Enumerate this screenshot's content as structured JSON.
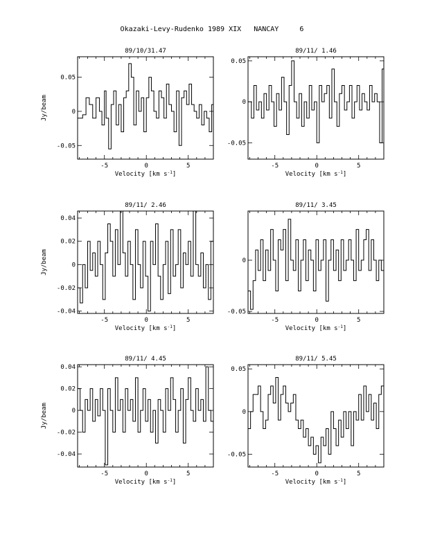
{
  "page": {
    "title": "Okazaki-Levy-Rudenko 1989 XIX   NANCAY     6"
  },
  "chart_data": [
    {
      "type": "line",
      "title": "89/10/31.47",
      "xlabel": "Velocity [km s$^{-1}$]",
      "ylabel": "Jy/beam",
      "xlim": [
        -8.2,
        8
      ],
      "ylim": [
        -0.07,
        0.08
      ],
      "xticks": [
        -5,
        0,
        5
      ],
      "yticks": [
        -0.05,
        0,
        0.05
      ],
      "ytick_labels": [
        "-0.05",
        "0",
        "0.05"
      ],
      "series": [
        {
          "x": [
            -8.2,
            -7.6,
            -7.2,
            -6.8,
            -6.4,
            -6.0,
            -5.6,
            -5.3,
            -5.0,
            -4.8,
            -4.5,
            -4.2,
            -3.9,
            -3.6,
            -3.3,
            -3.0,
            -2.7,
            -2.4,
            -2.1,
            -1.8,
            -1.5,
            -1.2,
            -0.9,
            -0.6,
            -0.3,
            0.0,
            0.3,
            0.6,
            0.9,
            1.2,
            1.5,
            1.8,
            2.1,
            2.4,
            2.7,
            3.0,
            3.3,
            3.6,
            3.9,
            4.2,
            4.5,
            4.8,
            5.1,
            5.4,
            5.7,
            6.0,
            6.3,
            6.6,
            6.9,
            7.2,
            7.5,
            7.8
          ],
          "y": [
            -0.01,
            -0.005,
            0.02,
            0.01,
            -0.01,
            0.02,
            0.0,
            -0.02,
            0.03,
            -0.01,
            -0.055,
            0.01,
            0.03,
            -0.02,
            0.01,
            -0.03,
            0.02,
            0.03,
            0.07,
            0.05,
            -0.02,
            0.03,
            0.0,
            0.02,
            -0.03,
            0.02,
            0.05,
            0.03,
            0.0,
            -0.01,
            0.03,
            0.02,
            -0.01,
            0.04,
            0.01,
            0.0,
            -0.03,
            0.03,
            -0.05,
            0.02,
            0.03,
            0.01,
            0.04,
            0.01,
            0.0,
            -0.01,
            0.01,
            -0.02,
            0.0,
            -0.01,
            -0.03,
            0.01
          ]
        }
      ]
    },
    {
      "type": "line",
      "title": "89/11/ 1.46",
      "xlabel": "Velocity [km s$^{-1}$]",
      "ylabel": "",
      "xlim": [
        -8.2,
        8
      ],
      "ylim": [
        -0.07,
        0.055
      ],
      "xticks": [
        -5,
        0,
        5
      ],
      "yticks": [
        -0.05,
        0,
        0.05
      ],
      "ytick_labels": [
        "-0.05",
        "0",
        "0.05"
      ],
      "series": [
        {
          "x": [
            -8.2,
            -7.8,
            -7.5,
            -7.2,
            -6.9,
            -6.6,
            -6.3,
            -6.0,
            -5.7,
            -5.4,
            -5.1,
            -4.8,
            -4.5,
            -4.2,
            -3.9,
            -3.6,
            -3.3,
            -3.0,
            -2.7,
            -2.4,
            -2.1,
            -1.8,
            -1.5,
            -1.2,
            -0.9,
            -0.6,
            -0.3,
            0.0,
            0.3,
            0.6,
            0.9,
            1.2,
            1.5,
            1.8,
            2.1,
            2.4,
            2.7,
            3.0,
            3.3,
            3.6,
            3.9,
            4.2,
            4.5,
            4.8,
            5.1,
            5.4,
            5.7,
            6.0,
            6.3,
            6.6,
            6.9,
            7.2,
            7.5,
            7.8
          ],
          "y": [
            0.0,
            -0.02,
            0.02,
            -0.01,
            0.0,
            -0.02,
            0.01,
            -0.01,
            0.02,
            0.0,
            -0.03,
            0.01,
            -0.01,
            0.03,
            0.0,
            -0.04,
            0.02,
            0.05,
            0.0,
            -0.02,
            0.01,
            -0.03,
            0.0,
            -0.02,
            0.02,
            -0.01,
            0.0,
            -0.05,
            0.02,
            0.0,
            0.01,
            0.02,
            -0.02,
            0.04,
            0.0,
            -0.03,
            0.01,
            0.02,
            -0.01,
            0.0,
            0.02,
            -0.02,
            0.0,
            0.02,
            -0.01,
            0.01,
            0.0,
            -0.01,
            0.02,
            0.0,
            0.01,
            0.0,
            -0.05,
            0.04
          ]
        }
      ]
    },
    {
      "type": "line",
      "title": "89/11/ 2.46",
      "xlabel": "Velocity [km s$^{-1}$]",
      "ylabel": "Jy/beam",
      "xlim": [
        -8.2,
        8
      ],
      "ylim": [
        -0.042,
        0.046
      ],
      "xticks": [
        -5,
        0,
        5
      ],
      "yticks": [
        -0.04,
        -0.02,
        0,
        0.02,
        0.04
      ],
      "ytick_labels": [
        "-0.04",
        "-0.02",
        "0",
        "0.02",
        "0.04"
      ],
      "series": [
        {
          "x": [
            -8.2,
            -7.9,
            -7.6,
            -7.3,
            -7.0,
            -6.7,
            -6.4,
            -6.1,
            -5.8,
            -5.5,
            -5.2,
            -4.9,
            -4.6,
            -4.3,
            -4.0,
            -3.7,
            -3.4,
            -3.1,
            -2.8,
            -2.5,
            -2.2,
            -1.9,
            -1.6,
            -1.3,
            -1.0,
            -0.7,
            -0.4,
            -0.1,
            0.2,
            0.5,
            0.8,
            1.1,
            1.4,
            1.7,
            2.0,
            2.3,
            2.6,
            2.9,
            3.2,
            3.5,
            3.8,
            4.1,
            4.4,
            4.7,
            5.0,
            5.3,
            5.6,
            5.9,
            6.2,
            6.5,
            6.8,
            7.1,
            7.4,
            7.7
          ],
          "y": [
            -0.02,
            -0.033,
            0.0,
            -0.02,
            0.02,
            -0.005,
            0.01,
            -0.01,
            0.02,
            0.0,
            -0.03,
            0.01,
            0.035,
            0.02,
            -0.01,
            0.03,
            0.0,
            0.05,
            0.01,
            -0.01,
            0.02,
            0.0,
            -0.03,
            0.03,
            0.0,
            -0.02,
            0.02,
            -0.01,
            -0.04,
            0.02,
            0.0,
            0.035,
            -0.01,
            -0.03,
            0.0,
            0.02,
            -0.025,
            0.03,
            -0.01,
            0.0,
            0.03,
            -0.02,
            0.01,
            0.0,
            0.02,
            -0.01,
            0.05,
            0.0,
            -0.01,
            0.01,
            -0.02,
            0.0,
            -0.03,
            0.02
          ]
        }
      ]
    },
    {
      "type": "line",
      "title": "89/11/ 3.45",
      "xlabel": "Velocity [km s$^{-1}$]",
      "ylabel": "",
      "xlim": [
        -8.2,
        8
      ],
      "ylim": [
        -0.052,
        0.048
      ],
      "xticks": [
        -5,
        0,
        5
      ],
      "yticks": [
        -0.05,
        0
      ],
      "ytick_labels": [
        "-0.05",
        "0"
      ],
      "series": [
        {
          "x": [
            -8.2,
            -7.9,
            -7.6,
            -7.3,
            -7.0,
            -6.7,
            -6.4,
            -6.1,
            -5.8,
            -5.5,
            -5.2,
            -4.9,
            -4.6,
            -4.3,
            -4.0,
            -3.7,
            -3.4,
            -3.1,
            -2.8,
            -2.5,
            -2.2,
            -1.9,
            -1.6,
            -1.3,
            -1.0,
            -0.7,
            -0.4,
            -0.1,
            0.2,
            0.5,
            0.8,
            1.1,
            1.4,
            1.7,
            2.0,
            2.3,
            2.6,
            2.9,
            3.2,
            3.5,
            3.8,
            4.1,
            4.4,
            4.7,
            5.0,
            5.3,
            5.6,
            5.9,
            6.2,
            6.5,
            6.8,
            7.1,
            7.4,
            7.7
          ],
          "y": [
            -0.03,
            -0.048,
            -0.02,
            0.01,
            -0.01,
            0.02,
            -0.02,
            0.01,
            -0.01,
            0.03,
            0.0,
            -0.03,
            0.02,
            0.01,
            0.03,
            -0.02,
            0.04,
            0.0,
            -0.01,
            0.02,
            -0.03,
            0.0,
            0.02,
            -0.02,
            0.01,
            0.0,
            -0.03,
            0.02,
            -0.01,
            0.0,
            0.02,
            -0.04,
            0.0,
            0.02,
            -0.01,
            0.01,
            -0.02,
            0.02,
            -0.01,
            0.0,
            0.02,
            0.0,
            -0.02,
            0.03,
            -0.01,
            0.0,
            0.02,
            0.03,
            -0.01,
            0.02,
            0.0,
            -0.02,
            0.0,
            -0.01
          ]
        }
      ]
    },
    {
      "type": "line",
      "title": "89/11/ 4.45",
      "xlabel": "Velocity [km s$^{-1}$]",
      "ylabel": "Jy/beam",
      "xlim": [
        -8.2,
        8
      ],
      "ylim": [
        -0.052,
        0.042
      ],
      "xticks": [
        -5,
        0,
        5
      ],
      "yticks": [
        -0.04,
        -0.02,
        0,
        0.02,
        0.04
      ],
      "ytick_labels": [
        "-0.04",
        "-0.02",
        "0",
        "0.02",
        "0.04"
      ],
      "series": [
        {
          "x": [
            -8.2,
            -7.9,
            -7.6,
            -7.3,
            -7.0,
            -6.7,
            -6.4,
            -6.1,
            -5.8,
            -5.5,
            -5.2,
            -4.9,
            -4.6,
            -4.3,
            -4.0,
            -3.7,
            -3.4,
            -3.1,
            -2.8,
            -2.5,
            -2.2,
            -1.9,
            -1.6,
            -1.3,
            -1.0,
            -0.7,
            -0.4,
            -0.1,
            0.2,
            0.5,
            0.8,
            1.1,
            1.4,
            1.7,
            2.0,
            2.3,
            2.6,
            2.9,
            3.2,
            3.5,
            3.8,
            4.1,
            4.4,
            4.7,
            5.0,
            5.3,
            5.6,
            5.9,
            6.2,
            6.5,
            6.8,
            7.1,
            7.4,
            7.7
          ],
          "y": [
            0.02,
            0.0,
            -0.02,
            0.01,
            0.0,
            0.02,
            -0.01,
            0.01,
            -0.005,
            0.02,
            0.0,
            -0.05,
            0.02,
            0.0,
            -0.02,
            0.03,
            0.0,
            0.01,
            -0.02,
            0.02,
            0.0,
            0.01,
            -0.01,
            0.03,
            -0.02,
            0.0,
            0.02,
            -0.01,
            0.01,
            -0.02,
            0.0,
            -0.03,
            0.01,
            0.0,
            -0.02,
            0.02,
            0.0,
            0.03,
            0.01,
            -0.02,
            0.0,
            0.02,
            -0.03,
            0.01,
            0.03,
            0.0,
            -0.01,
            0.02,
            0.0,
            0.01,
            -0.01,
            0.04,
            0.0,
            -0.01
          ]
        }
      ]
    },
    {
      "type": "line",
      "title": "89/11/ 5.45",
      "xlabel": "Velocity [km s$^{-1}$]",
      "ylabel": "",
      "xlim": [
        -8.2,
        8
      ],
      "ylim": [
        -0.065,
        0.055
      ],
      "xticks": [
        -5,
        0,
        5
      ],
      "yticks": [
        -0.05,
        0,
        0.05
      ],
      "ytick_labels": [
        "-0.05",
        "0",
        "0.05"
      ],
      "series": [
        {
          "x": [
            -8.2,
            -7.9,
            -7.6,
            -7.3,
            -7.0,
            -6.7,
            -6.4,
            -6.1,
            -5.8,
            -5.5,
            -5.2,
            -4.9,
            -4.6,
            -4.3,
            -4.0,
            -3.7,
            -3.4,
            -3.1,
            -2.8,
            -2.5,
            -2.2,
            -1.9,
            -1.6,
            -1.3,
            -1.0,
            -0.7,
            -0.4,
            -0.1,
            0.2,
            0.5,
            0.8,
            1.1,
            1.4,
            1.7,
            2.0,
            2.3,
            2.6,
            2.9,
            3.2,
            3.5,
            3.8,
            4.1,
            4.4,
            4.7,
            5.0,
            5.3,
            5.6,
            5.9,
            6.2,
            6.5,
            6.8,
            7.1,
            7.4,
            7.7
          ],
          "y": [
            -0.02,
            0.0,
            0.02,
            0.02,
            0.03,
            0.0,
            -0.02,
            -0.01,
            0.02,
            0.03,
            0.01,
            0.04,
            -0.01,
            0.02,
            0.03,
            0.01,
            0.0,
            0.01,
            0.02,
            -0.01,
            -0.02,
            -0.01,
            -0.03,
            -0.02,
            -0.04,
            -0.03,
            -0.05,
            -0.04,
            -0.06,
            -0.03,
            -0.04,
            -0.02,
            -0.05,
            0.0,
            -0.02,
            -0.04,
            -0.01,
            -0.03,
            0.0,
            -0.02,
            0.0,
            -0.04,
            0.0,
            -0.01,
            0.02,
            -0.01,
            0.03,
            0.0,
            0.02,
            -0.01,
            0.01,
            -0.02,
            0.02,
            0.03
          ]
        }
      ]
    }
  ]
}
